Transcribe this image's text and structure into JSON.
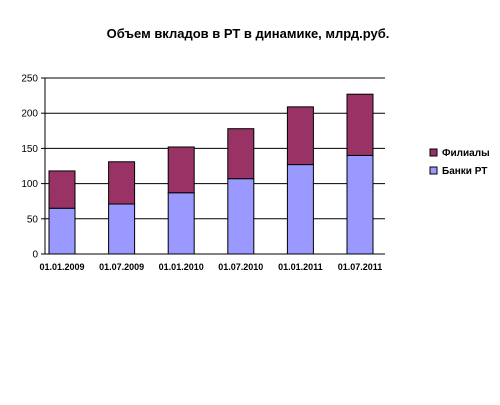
{
  "chart_data": {
    "type": "bar",
    "stacked": true,
    "title": "Объем вкладов в РТ в динамике, млрд.руб.",
    "xlabel": "",
    "ylabel": "",
    "categories": [
      "01.01.2009",
      "01.07.2009",
      "01.01.2010",
      "01.07.2010",
      "01.01.2011",
      "01.07.2011"
    ],
    "series": [
      {
        "name": "Банки РТ",
        "values": [
          65,
          71,
          87,
          107,
          127,
          140
        ],
        "color": "#9999ff"
      },
      {
        "name": "Филиалы",
        "values": [
          53,
          60,
          65,
          71,
          82,
          87
        ],
        "color": "#993366"
      }
    ],
    "ylim": [
      0,
      250
    ],
    "yticks": [
      0,
      50,
      100,
      150,
      200,
      250
    ],
    "grid": true,
    "legend": "right",
    "legend_order": [
      "Филиалы",
      "Банки РТ"
    ]
  }
}
